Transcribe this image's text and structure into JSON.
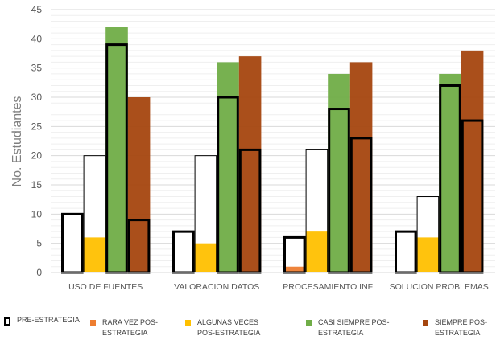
{
  "chart_data": {
    "type": "bar",
    "title": "",
    "xlabel": "",
    "ylabel": "No. Estudiantes",
    "ylim": [
      0,
      45
    ],
    "yticks": [
      "0",
      "5",
      "10",
      "15",
      "20",
      "25",
      "30",
      "35",
      "40",
      "45"
    ],
    "categories": [
      "USO DE FUENTES",
      "VALORACION DATOS",
      "PROCESAMIENTO INF",
      "SOLUCION PROBLEMAS"
    ],
    "levels": [
      "RARA VEZ",
      "ALGUNAS VECES",
      "CASI SIEMPRE",
      "SIEMPRE"
    ],
    "series": [
      {
        "name": "PRE-ESTRATEGIA",
        "values": [
          [
            10,
            20,
            39,
            9
          ],
          [
            7,
            20,
            30,
            21
          ],
          [
            6,
            21,
            28,
            23
          ],
          [
            7,
            13,
            32,
            26
          ]
        ],
        "color": "#000000"
      },
      {
        "name": "RARA VEZ POS-ESTRATEGIA",
        "values": [
          0,
          0,
          1,
          0
        ],
        "color": "#ED7D31"
      },
      {
        "name": "ALGUNAS VECES POS-ESTRATEGIA",
        "values": [
          6,
          5,
          7,
          6
        ],
        "color": "#FFC000"
      },
      {
        "name": "CASI SIEMPRE POS-ESTRATEGIA",
        "values": [
          42,
          36,
          34,
          34
        ],
        "color": "#70AD47"
      },
      {
        "name": "SIEMPRE POS-ESTRATEGIA",
        "values": [
          30,
          37,
          36,
          38
        ],
        "color": "#A5460F"
      }
    ],
    "grid": true,
    "legend_position": "bottom"
  }
}
